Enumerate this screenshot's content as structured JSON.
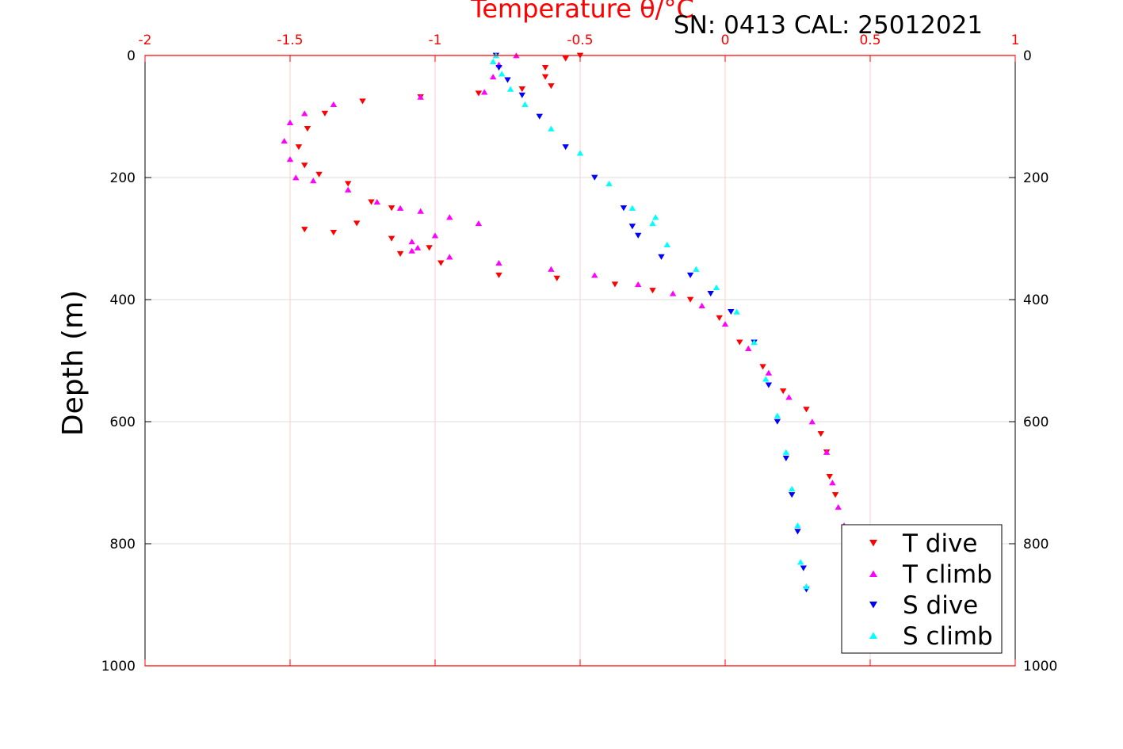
{
  "chart_data": {
    "type": "scatter",
    "title": "Temperature θ/°C",
    "annotation": "SN: 0413  CAL: 25012021",
    "xlabel": "Temperature θ/°C",
    "ylabel": "Depth (m)",
    "xlim": [
      -2,
      1
    ],
    "ylim": [
      0,
      1000
    ],
    "y_inverted": true,
    "x_axis_position": "top",
    "x_ticks": [
      "-2",
      "-1.5",
      "-1",
      "-0.5",
      "0",
      "0.5",
      "1"
    ],
    "y_ticks": [
      "0",
      "200",
      "400",
      "600",
      "800",
      "1000"
    ],
    "grid": true,
    "legend_position": "bottom-right",
    "colors": {
      "axis_top": "#ff0000",
      "t_dive": "#ff0000",
      "t_climb": "#ff00ff",
      "s_dive": "#0000ff",
      "s_climb": "#00ffff"
    },
    "series": [
      {
        "name": "T dive",
        "marker": "triangle-down",
        "color": "#ff0000",
        "x": [
          -0.5,
          -0.55,
          -0.62,
          -0.62,
          -0.6,
          -0.7,
          -0.85,
          -1.05,
          -1.25,
          -1.38,
          -1.44,
          -1.47,
          -1.45,
          -1.4,
          -1.3,
          -1.22,
          -1.15,
          -1.27,
          -1.45,
          -1.35,
          -1.15,
          -1.02,
          -1.12,
          -0.98,
          -0.78,
          -0.58,
          -0.38,
          -0.25,
          -0.12,
          -0.02,
          0.05,
          0.13,
          0.2,
          0.28,
          0.33,
          0.35,
          0.36,
          0.38
        ],
        "y": [
          0,
          5,
          20,
          35,
          50,
          55,
          62,
          68,
          75,
          95,
          120,
          150,
          180,
          195,
          210,
          240,
          250,
          275,
          285,
          290,
          300,
          315,
          325,
          340,
          360,
          365,
          375,
          385,
          400,
          430,
          470,
          510,
          550,
          580,
          620,
          650,
          690,
          720
        ]
      },
      {
        "name": "T climb",
        "marker": "triangle-up",
        "color": "#ff00ff",
        "x": [
          -0.72,
          -0.78,
          -0.8,
          -0.83,
          -1.05,
          -1.35,
          -1.45,
          -1.5,
          -1.52,
          -1.5,
          -1.48,
          -1.42,
          -1.3,
          -1.2,
          -1.12,
          -1.05,
          -0.95,
          -0.85,
          -1.0,
          -1.08,
          -1.06,
          -1.08,
          -0.95,
          -0.78,
          -0.6,
          -0.45,
          -0.3,
          -0.18,
          -0.08,
          0.0,
          0.08,
          0.15,
          0.22,
          0.3,
          0.35,
          0.37,
          0.39,
          0.41
        ],
        "y": [
          0,
          15,
          35,
          60,
          68,
          80,
          95,
          110,
          140,
          170,
          200,
          205,
          220,
          240,
          250,
          255,
          265,
          275,
          295,
          305,
          315,
          320,
          330,
          340,
          350,
          360,
          375,
          390,
          410,
          440,
          480,
          520,
          560,
          600,
          650,
          700,
          740,
          770
        ]
      },
      {
        "name": "S dive",
        "marker": "triangle-down",
        "color": "#0000ff",
        "x": [
          -0.79,
          -0.78,
          -0.75,
          -0.7,
          -0.64,
          -0.55,
          -0.45,
          -0.35,
          -0.32,
          -0.3,
          -0.22,
          -0.12,
          -0.05,
          0.02,
          0.1,
          0.15,
          0.18,
          0.21,
          0.23,
          0.25,
          0.27,
          0.28
        ],
        "y": [
          0,
          20,
          40,
          65,
          100,
          150,
          200,
          250,
          280,
          295,
          330,
          360,
          390,
          420,
          470,
          540,
          600,
          660,
          720,
          780,
          840,
          875
        ]
      },
      {
        "name": "S climb",
        "marker": "triangle-up",
        "color": "#00ffff",
        "x": [
          -0.79,
          -0.8,
          -0.77,
          -0.74,
          -0.69,
          -0.6,
          -0.5,
          -0.4,
          -0.32,
          -0.24,
          -0.25,
          -0.2,
          -0.1,
          -0.03,
          0.04,
          0.1,
          0.14,
          0.18,
          0.21,
          0.23,
          0.25,
          0.26,
          0.28
        ],
        "y": [
          0,
          10,
          30,
          55,
          80,
          120,
          160,
          210,
          250,
          265,
          275,
          310,
          350,
          380,
          420,
          470,
          530,
          590,
          650,
          710,
          770,
          830,
          870
        ]
      }
    ]
  }
}
